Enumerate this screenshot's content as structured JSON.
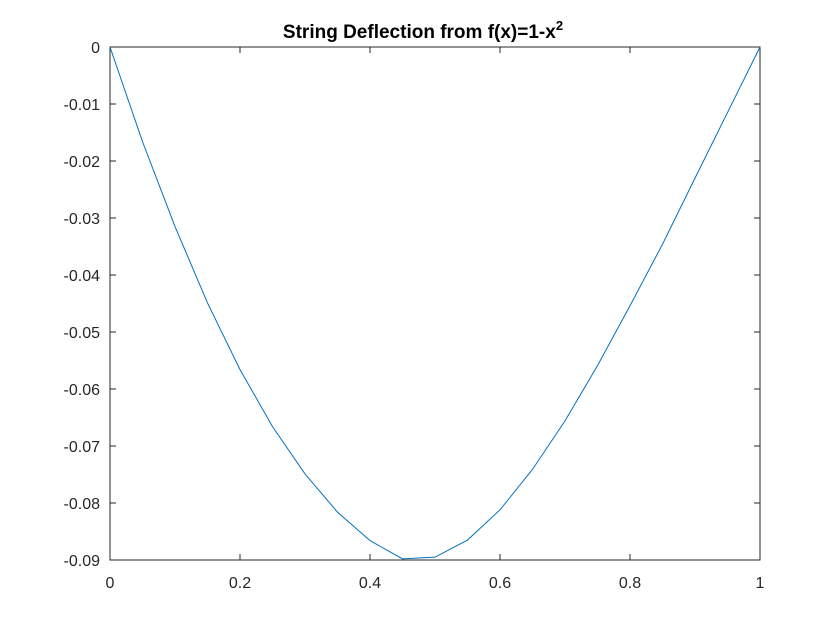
{
  "chart_data": {
    "type": "line",
    "title": "String Deflection from f(x)=1-x",
    "title_superscript": "2",
    "xlabel": "",
    "ylabel": "",
    "xlim": [
      0,
      1
    ],
    "ylim": [
      -0.09,
      0
    ],
    "xticks": [
      0,
      0.2,
      0.4,
      0.6,
      0.8,
      1
    ],
    "xtick_labels": [
      "0",
      "0.2",
      "0.4",
      "0.6",
      "0.8",
      "1"
    ],
    "yticks": [
      0,
      -0.01,
      -0.02,
      -0.03,
      -0.04,
      -0.05,
      -0.06,
      -0.07,
      -0.08,
      -0.09
    ],
    "ytick_labels": [
      "0",
      "-0.01",
      "-0.02",
      "-0.03",
      "-0.04",
      "-0.05",
      "-0.06",
      "-0.07",
      "-0.08",
      "-0.09"
    ],
    "grid": false,
    "box": true,
    "series": [
      {
        "color": "#0072BD",
        "x": [
          0,
          0.05,
          0.1,
          0.15,
          0.2,
          0.25,
          0.3,
          0.35,
          0.4,
          0.45,
          0.5,
          0.55,
          0.6,
          0.65,
          0.7,
          0.75,
          0.8,
          0.85,
          0.9,
          0.95,
          1
        ],
        "y": [
          0,
          -0.0166,
          -0.0315,
          -0.0449,
          -0.0566,
          -0.0666,
          -0.0749,
          -0.0816,
          -0.0866,
          -0.0898,
          -0.0895,
          -0.0865,
          -0.0812,
          -0.0741,
          -0.0656,
          -0.0559,
          -0.0454,
          -0.0346,
          -0.023,
          -0.0115,
          0
        ]
      }
    ]
  }
}
